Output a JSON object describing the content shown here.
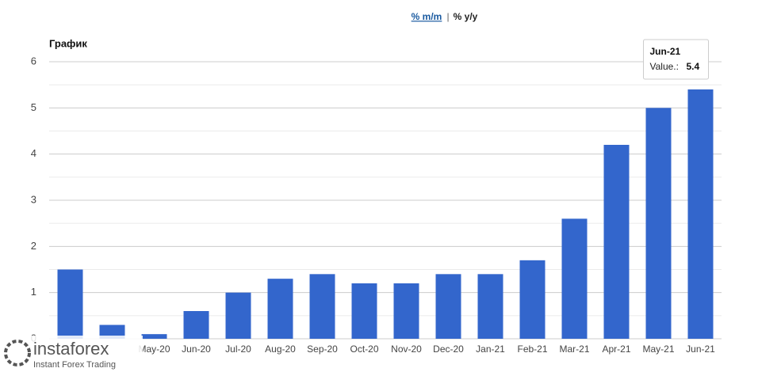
{
  "toggle": {
    "active": "% m/m",
    "separator": "|",
    "other": "% y/y"
  },
  "chart_data": {
    "type": "bar",
    "title": "График",
    "categories": [
      null,
      null,
      "May-20",
      "Jun-20",
      "Jul-20",
      "Aug-20",
      "Sep-20",
      "Oct-20",
      "Nov-20",
      "Dec-20",
      "Jan-21",
      "Feb-21",
      "Mar-21",
      "Apr-21",
      "May-21",
      "Jun-21"
    ],
    "values": [
      1.5,
      0.3,
      0.1,
      0.6,
      1.0,
      1.3,
      1.4,
      1.2,
      1.2,
      1.4,
      1.4,
      1.7,
      2.6,
      4.2,
      5.0,
      5.4
    ],
    "color": "#3366cc",
    "ylim": [
      0,
      6
    ],
    "yticks": [
      0,
      1,
      2,
      3,
      4,
      5,
      6
    ],
    "yticks_minor": [
      0.5,
      1.5,
      2.5,
      3.5,
      4.5,
      5.5
    ],
    "grid": true,
    "tooltip": {
      "index": 15,
      "label": "Value.:"
    }
  },
  "watermark": {
    "brand": "instaforex",
    "tagline": "Instant Forex Trading"
  }
}
